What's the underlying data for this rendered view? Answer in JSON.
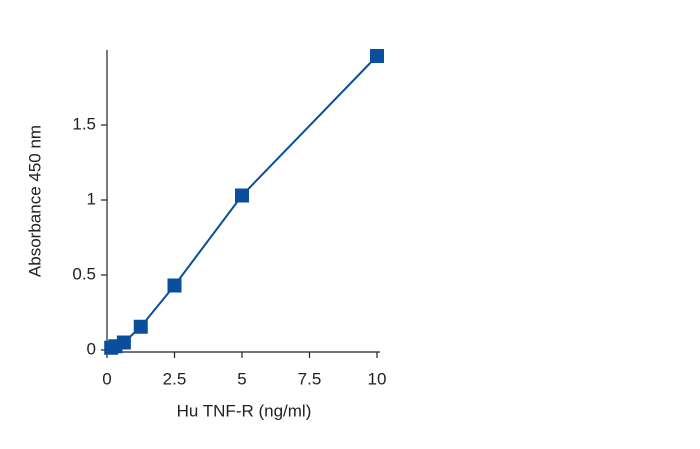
{
  "chart_data": {
    "type": "line",
    "x_label": "Hu TNF-R (ng/ml)",
    "y_label": "Absorbance 450 nm",
    "series": [
      {
        "color": "#0a4f9c",
        "x": [
          0.156,
          0.313,
          0.625,
          1.25,
          2.5,
          5,
          10
        ],
        "values": [
          0.015,
          0.025,
          0.05,
          0.155,
          0.43,
          1.03,
          1.96
        ]
      }
    ],
    "xlim": [
      0,
      10
    ],
    "xticks": [
      0,
      2.5,
      5,
      7.5,
      10
    ],
    "ylim": [
      0,
      2
    ],
    "yticks": [
      0,
      0.5,
      1,
      1.5
    ]
  }
}
